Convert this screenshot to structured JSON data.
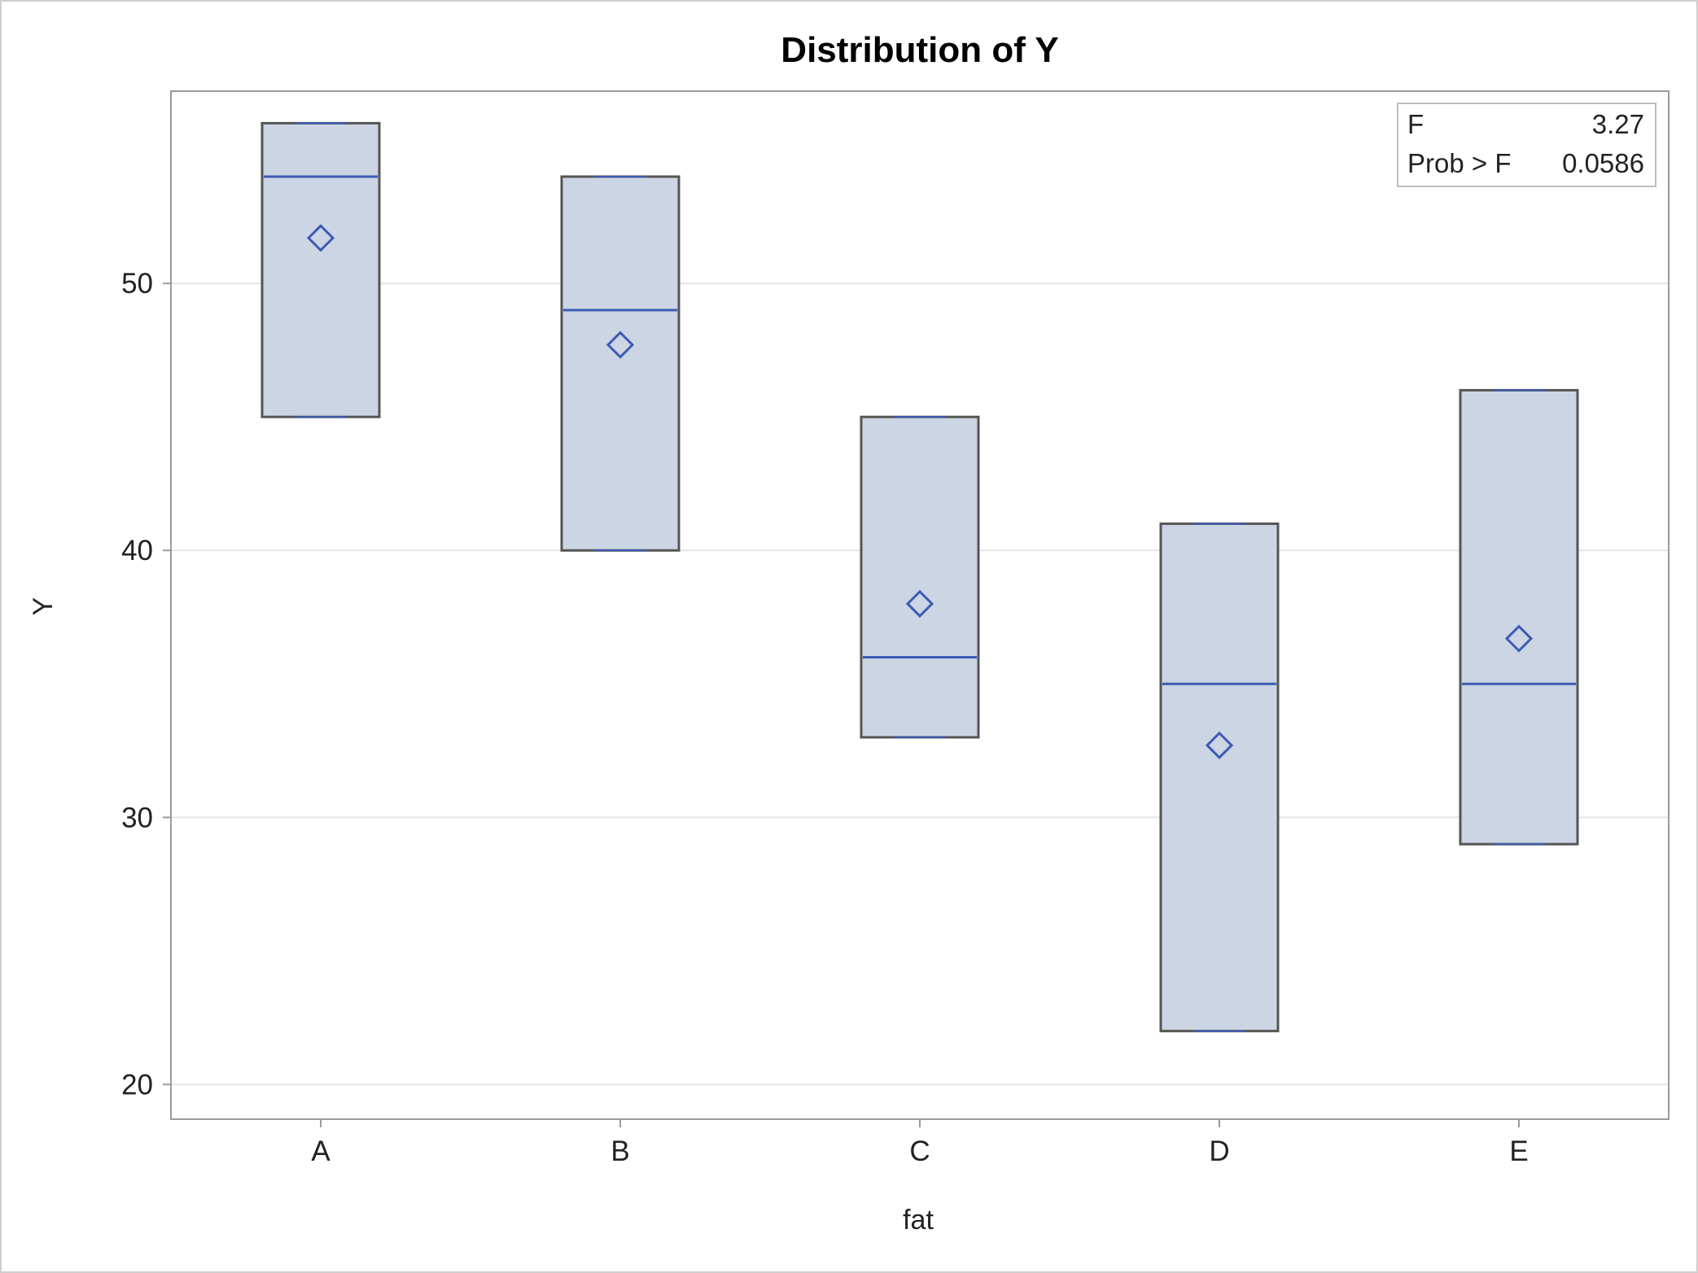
{
  "chart_data": {
    "type": "box",
    "title": "Distribution of Y",
    "xlabel": "fat",
    "ylabel": "Y",
    "categories": [
      "A",
      "B",
      "C",
      "D",
      "E"
    ],
    "boxes": [
      {
        "category": "A",
        "min": 45,
        "q1": 45,
        "median": 54,
        "q3": 56,
        "max": 56,
        "mean": 51.7
      },
      {
        "category": "B",
        "min": 40,
        "q1": 40,
        "median": 49,
        "q3": 54,
        "max": 54,
        "mean": 47.7
      },
      {
        "category": "C",
        "min": 33,
        "q1": 33,
        "median": 36,
        "q3": 45,
        "max": 45,
        "mean": 38.0
      },
      {
        "category": "D",
        "min": 22,
        "q1": 22,
        "median": 35,
        "q3": 41,
        "max": 41,
        "mean": 32.7
      },
      {
        "category": "E",
        "min": 29,
        "q1": 29,
        "median": 35,
        "q3": 46,
        "max": 46,
        "mean": 36.7
      }
    ],
    "ylim": [
      18.7,
      57.2
    ],
    "yticks": [
      20,
      30,
      40,
      50
    ],
    "grid": true,
    "stats_inset": {
      "position": "top-right",
      "rows": [
        {
          "label": "F",
          "value": "3.27"
        },
        {
          "label": "Prob > F",
          "value": "0.0586"
        }
      ]
    },
    "colors": {
      "box_fill": "#ccd5e3",
      "box_outline": "#555555",
      "median_line": "#3c5bb5",
      "mean_marker": "#3c5bb5",
      "grid": "#e6e6e6",
      "frame": "#9a9a9a"
    }
  }
}
